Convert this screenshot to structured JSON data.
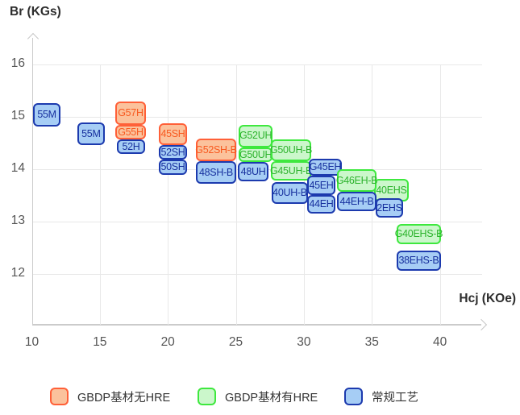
{
  "chart_data": {
    "type": "scatter",
    "mark": "labeled-range-box",
    "title": "",
    "xlabel": "Hcj (KOe)",
    "ylabel": "Br (KGs)",
    "xlim": [
      10,
      43
    ],
    "ylim": [
      11,
      16.6
    ],
    "x_ticks": [
      10,
      15,
      20,
      25,
      30,
      35,
      40
    ],
    "y_ticks": [
      12,
      13,
      14,
      15,
      16
    ],
    "grid": "on",
    "legend_position": "bottom",
    "series": [
      {
        "key": "orange",
        "name": "GBDP基材无HRE",
        "fill": "#FBC29C",
        "border": "#FF6038",
        "text": "#F85A20"
      },
      {
        "key": "green",
        "name": "GBDP基材有HRE",
        "fill": "#CBF7CB",
        "border": "#3EE83E",
        "text": "#2DB32D"
      },
      {
        "key": "blue",
        "name": "常规工艺",
        "fill": "#A6CDF5",
        "border": "#1C3AAE",
        "text": "#17309E"
      }
    ],
    "points": [
      {
        "label": "55M",
        "series": "blue",
        "hcj": [
          10.1,
          12.1
        ],
        "br": [
          14.82,
          15.26
        ]
      },
      {
        "label": "55M",
        "series": "blue",
        "hcj": [
          13.35,
          15.35
        ],
        "br": [
          14.46,
          14.89
        ]
      },
      {
        "label": "52H",
        "series": "blue",
        "hcj": [
          16.25,
          18.33
        ],
        "br": [
          14.29,
          14.57
        ]
      },
      {
        "label": "G55H",
        "series": "orange",
        "hcj": [
          16.13,
          18.39
        ],
        "br": [
          14.57,
          14.85
        ]
      },
      {
        "label": "G57H",
        "series": "orange",
        "hcj": [
          16.13,
          18.39
        ],
        "br": [
          14.85,
          15.29
        ]
      },
      {
        "label": "50SH",
        "series": "blue",
        "hcj": [
          19.34,
          21.41
        ],
        "br": [
          13.89,
          14.18
        ]
      },
      {
        "label": "52SH",
        "series": "blue",
        "hcj": [
          19.34,
          21.41
        ],
        "br": [
          14.18,
          14.46
        ]
      },
      {
        "label": "45SH",
        "series": "orange",
        "hcj": [
          19.34,
          21.41
        ],
        "br": [
          14.46,
          14.88
        ]
      },
      {
        "label": "48SH-B",
        "series": "blue",
        "hcj": [
          22.06,
          25.03
        ],
        "br": [
          13.72,
          14.15
        ]
      },
      {
        "label": "G52SH-B",
        "series": "orange",
        "hcj": [
          22.06,
          25.03
        ],
        "br": [
          14.15,
          14.58
        ]
      },
      {
        "label": "48UH",
        "series": "blue",
        "hcj": [
          25.15,
          27.4
        ],
        "br": [
          13.77,
          14.14
        ]
      },
      {
        "label": "G50UH",
        "series": "green",
        "hcj": [
          25.21,
          27.7
        ],
        "br": [
          14.14,
          14.42
        ]
      },
      {
        "label": "G52UH",
        "series": "green",
        "hcj": [
          25.21,
          27.7
        ],
        "br": [
          14.42,
          14.85
        ]
      },
      {
        "label": "G50UH-B",
        "series": "green",
        "hcj": [
          27.58,
          30.54
        ],
        "br": [
          14.15,
          14.57
        ]
      },
      {
        "label": "G45UH-B",
        "series": "green",
        "hcj": [
          27.58,
          30.54
        ],
        "br": [
          13.78,
          14.15
        ]
      },
      {
        "label": "40UH-B",
        "series": "blue",
        "hcj": [
          27.64,
          30.3
        ],
        "br": [
          13.34,
          13.75
        ]
      },
      {
        "label": "G45EH",
        "series": "blue",
        "hcj": [
          30.36,
          32.79
        ],
        "br": [
          13.88,
          14.2
        ]
      },
      {
        "label": "45EH",
        "series": "blue",
        "hcj": [
          30.24,
          32.32
        ],
        "br": [
          13.51,
          13.88
        ]
      },
      {
        "label": "44EH",
        "series": "blue",
        "hcj": [
          30.24,
          32.32
        ],
        "br": [
          13.15,
          13.51
        ]
      },
      {
        "label": "40EHS",
        "series": "green",
        "hcj": [
          35.16,
          37.71
        ],
        "br": [
          13.38,
          13.82
        ]
      },
      {
        "label": "2EHS",
        "series": "blue",
        "hcj": [
          35.28,
          37.29
        ],
        "br": [
          13.08,
          13.45
        ]
      },
      {
        "label": "G46EH-B",
        "series": "green",
        "hcj": [
          32.44,
          35.34
        ],
        "br": [
          13.57,
          14.0
        ]
      },
      {
        "label": "44EH-B",
        "series": "blue",
        "hcj": [
          32.44,
          35.34
        ],
        "br": [
          13.2,
          13.57
        ]
      },
      {
        "label": "G40EHS-B",
        "series": "green",
        "hcj": [
          36.82,
          40.08
        ],
        "br": [
          12.57,
          12.95
        ]
      },
      {
        "label": "38EHS-B",
        "series": "blue",
        "hcj": [
          36.82,
          40.08
        ],
        "br": [
          12.06,
          12.45
        ]
      }
    ]
  }
}
